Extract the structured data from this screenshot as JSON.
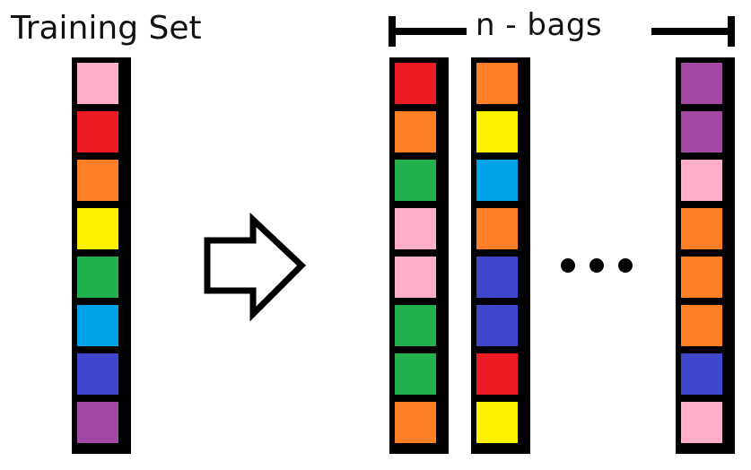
{
  "title": "Training Set",
  "bags_label": "n -  bags",
  "colors": {
    "pink": "#ffaec9",
    "red": "#ed1c24",
    "orange": "#ff7f27",
    "yellow": "#fff200",
    "green": "#22b14c",
    "light-blue": "#00a2e8",
    "blue": "#3f48cc",
    "purple": "#a349a4"
  },
  "training_set": [
    "pink",
    "red",
    "orange",
    "yellow",
    "green",
    "light-blue",
    "blue",
    "purple"
  ],
  "bags": [
    [
      "red",
      "orange",
      "green",
      "pink",
      "pink",
      "green",
      "green",
      "orange"
    ],
    [
      "orange",
      "yellow",
      "light-blue",
      "orange",
      "blue",
      "blue",
      "red",
      "yellow"
    ],
    [
      "purple",
      "purple",
      "pink",
      "orange",
      "orange",
      "orange",
      "blue",
      "pink"
    ]
  ],
  "icons": {
    "arrow": "right-arrow-outline-icon",
    "ellipsis": "ellipsis-dots-icon",
    "bracket": "bracket-span-icon"
  }
}
